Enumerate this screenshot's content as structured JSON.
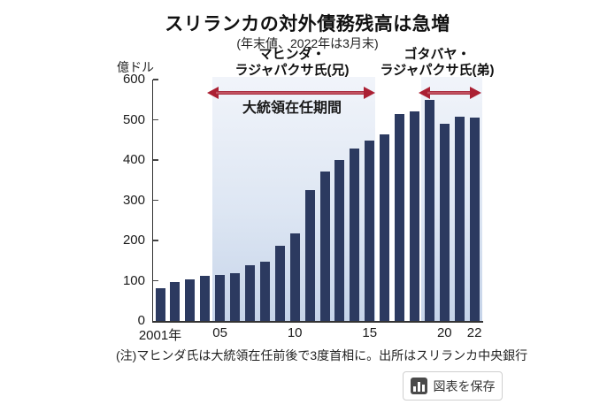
{
  "chart": {
    "title": "スリランカの対外債務残高は急増",
    "subtitle": "(年末値、2022年は3月末)",
    "unit_label": "億ドル",
    "note": "(注)マヒンダ氏は大統領在任前後で3度首相に。出所はスリランカ中央銀行"
  },
  "annotations": {
    "mahinda": {
      "line1": "マヒンダ・",
      "line2": "ラジャパクサ氏(兄)"
    },
    "gotabaya": {
      "line1": "ゴタバヤ・",
      "line2": "ラジャパクサ氏(弟)"
    },
    "term": "大統領在任期間"
  },
  "chart_data": {
    "type": "bar",
    "title": "スリランカの対外債務残高は急増",
    "subtitle": "(年末値、2022年は3月末)",
    "xlabel": "",
    "ylabel": "億ドル",
    "ylim": [
      0,
      600
    ],
    "y_ticks": [
      0,
      100,
      200,
      300,
      400,
      500,
      600
    ],
    "grid": false,
    "legend_position": "none",
    "categories": [
      "2001",
      "2002",
      "2003",
      "2004",
      "2005",
      "2006",
      "2007",
      "2008",
      "2009",
      "2010",
      "2011",
      "2012",
      "2013",
      "2014",
      "2015",
      "2016",
      "2017",
      "2018",
      "2019",
      "2020",
      "2021",
      "2022"
    ],
    "values": [
      81,
      96,
      104,
      113,
      114,
      119,
      139,
      148,
      186,
      217,
      325,
      371,
      399,
      429,
      448,
      464,
      515,
      520,
      550,
      490,
      507,
      505
    ],
    "x_tick_labels": [
      {
        "label": "2001年",
        "index": 0
      },
      {
        "label": "05",
        "index": 4
      },
      {
        "label": "10",
        "index": 9
      },
      {
        "label": "15",
        "index": 14
      },
      {
        "label": "20",
        "index": 19
      },
      {
        "label": "22",
        "index": 21
      }
    ],
    "highlight_ranges": [
      {
        "person": "マヒンダ・ラジャパクサ氏(兄)",
        "label": "大統領在任期間",
        "from_year": "2005",
        "to_year": "2015"
      },
      {
        "person": "ゴタバヤ・ラジャパクサ氏(弟)",
        "label": "大統領在任期間",
        "from_year": "2019",
        "to_year": "2022"
      }
    ]
  },
  "colors": {
    "bar": "#2c3a60",
    "arrow_red": "#ab2033",
    "shade_top": "#f1f4fa",
    "shade_bottom": "#c6d4e9",
    "axis": "#333333"
  },
  "save_button": {
    "label": "図表を保存",
    "icon": "bar-chart-icon"
  }
}
